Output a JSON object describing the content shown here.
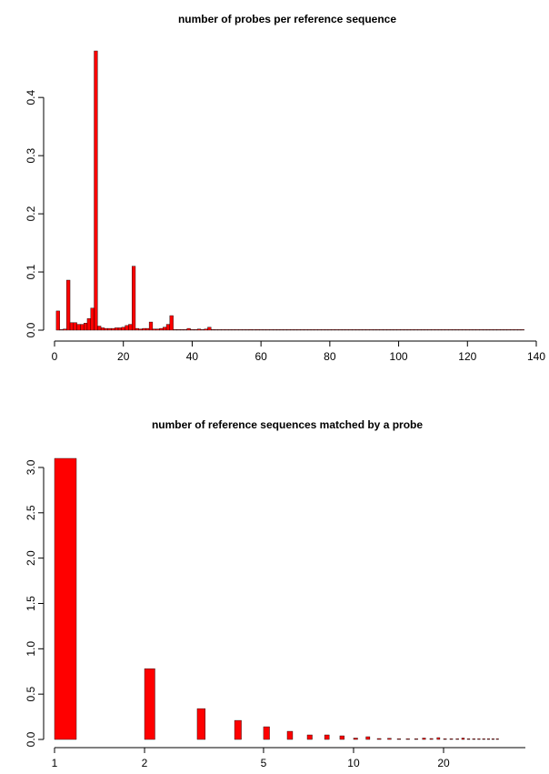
{
  "chart_data": [
    {
      "type": "bar",
      "title": "number of probes per reference sequence",
      "xlabel": "",
      "ylabel": "",
      "xlim": [
        0,
        140
      ],
      "ylim": [
        0,
        0.48
      ],
      "x_ticks": [
        0,
        20,
        40,
        60,
        80,
        100,
        120,
        140
      ],
      "y_ticks": [
        0.0,
        0.1,
        0.2,
        0.3,
        0.4
      ],
      "x_tick_labels": [
        "0",
        "20",
        "40",
        "60",
        "80",
        "100",
        "120",
        "140"
      ],
      "y_tick_labels": [
        "0.0",
        "0.1",
        "0.2",
        "0.3",
        "0.4"
      ],
      "bar_color": "#ff0000",
      "bar_width": 1,
      "x": [
        1,
        2,
        3,
        4,
        5,
        6,
        7,
        8,
        9,
        10,
        11,
        12,
        13,
        14,
        15,
        16,
        17,
        18,
        19,
        20,
        21,
        22,
        23,
        24,
        25,
        26,
        27,
        28,
        29,
        30,
        31,
        32,
        33,
        34,
        35,
        36,
        37,
        38,
        39,
        40,
        41,
        42,
        43,
        44,
        45,
        46,
        47,
        48,
        49,
        50,
        51,
        52,
        53,
        54,
        55,
        56,
        57,
        58,
        59,
        60,
        61,
        62,
        63,
        64,
        65,
        66,
        67,
        68,
        69,
        70,
        71,
        72,
        73,
        74,
        75,
        76,
        77,
        78,
        79,
        80,
        81,
        82,
        83,
        84,
        85,
        86,
        87,
        88,
        89,
        90,
        91,
        92,
        93,
        94,
        95,
        96,
        97,
        98,
        99,
        100,
        101,
        102,
        103,
        104,
        105,
        106,
        107,
        108,
        109,
        110,
        111,
        112,
        113,
        114,
        115,
        116,
        117,
        118,
        119,
        120,
        121,
        122,
        123,
        124,
        125,
        126,
        127,
        128,
        129,
        130,
        131,
        132,
        133,
        134,
        135,
        136
      ],
      "values": [
        0.033,
        0.001,
        0.002,
        0.086,
        0.013,
        0.013,
        0.01,
        0.01,
        0.012,
        0.02,
        0.038,
        0.48,
        0.007,
        0.004,
        0.003,
        0.003,
        0.003,
        0.004,
        0.004,
        0.005,
        0.008,
        0.01,
        0.11,
        0.003,
        0.002,
        0.003,
        0.003,
        0.014,
        0.002,
        0.002,
        0.003,
        0.005,
        0.01,
        0.025,
        0.001,
        0.001,
        0.001,
        0.001,
        0.003,
        0.001,
        0.001,
        0.002,
        0.001,
        0.002,
        0.005,
        0.001,
        0.0005,
        0.0005,
        0.0005,
        0.0005,
        0.0005,
        0.0005,
        0.0005,
        0.0005,
        0.0005,
        0.0005,
        0.001,
        0.0005,
        0.001,
        0.0005,
        0.0005,
        0.0005,
        0.0005,
        0.0005,
        0.0005,
        0.0005,
        0.0005,
        0.0005,
        0.0005,
        0.0005,
        0.0005,
        0.0005,
        0.0005,
        0.0005,
        0.0005,
        0.0005,
        0.0005,
        0.0005,
        0.0005,
        0.0005,
        0.0005,
        0.0005,
        0.0005,
        0.0005,
        0.0005,
        0.0005,
        0.0005,
        0.0005,
        0.0005,
        0.0005,
        0.0005,
        0.0005,
        0.0005,
        0.0005,
        0.0005,
        0.0005,
        0.0005,
        0.0005,
        0.0005,
        0.0005,
        0.0005,
        0.0005,
        0.0005,
        0.0005,
        0.0005,
        0.0005,
        0.0005,
        0.0005,
        0.0005,
        0.0005,
        0.0005,
        0.0005,
        0.0005,
        0.0005,
        0.0005,
        0.0005,
        0.0005,
        0.0005,
        0.0005,
        0.0005,
        0.0005,
        0.0005,
        0.0005,
        0.0005,
        0.0005,
        0.0005,
        0.0005,
        0.0005,
        0.0005,
        0.0005,
        0.0005,
        0.0005,
        0.0005,
        0.0005,
        0.0005,
        0.0005
      ]
    },
    {
      "type": "bar",
      "title": "number of reference sequences matched by a probe",
      "xlabel": "",
      "ylabel": "",
      "x_scale": "log",
      "xlim": [
        1,
        30
      ],
      "ylim": [
        0,
        3.1
      ],
      "x_ticks": [
        1,
        2,
        5,
        10,
        20
      ],
      "y_ticks": [
        0.0,
        0.5,
        1.0,
        1.5,
        2.0,
        2.5,
        3.0
      ],
      "x_tick_labels": [
        "1",
        "2",
        "5",
        "10",
        "20"
      ],
      "y_tick_labels": [
        "0.0",
        "0.5",
        "1.0",
        "1.5",
        "2.0",
        "2.5",
        "3.0"
      ],
      "bar_color": "#ff0000",
      "x": [
        1,
        2,
        3,
        4,
        5,
        6,
        7,
        8,
        9,
        10,
        11,
        12,
        13,
        14,
        15,
        16,
        17,
        18,
        19,
        20,
        21,
        22,
        23,
        24,
        25,
        26,
        27,
        28,
        29,
        30
      ],
      "values": [
        3.1,
        0.78,
        0.34,
        0.21,
        0.14,
        0.09,
        0.05,
        0.05,
        0.04,
        0.015,
        0.03,
        0.01,
        0.012,
        0.008,
        0.005,
        0.005,
        0.015,
        0.01,
        0.02,
        0.005,
        0.005,
        0.003,
        0.015,
        0.003,
        0.002,
        0.002,
        0.002,
        0.002,
        0.002,
        0.002
      ]
    }
  ]
}
